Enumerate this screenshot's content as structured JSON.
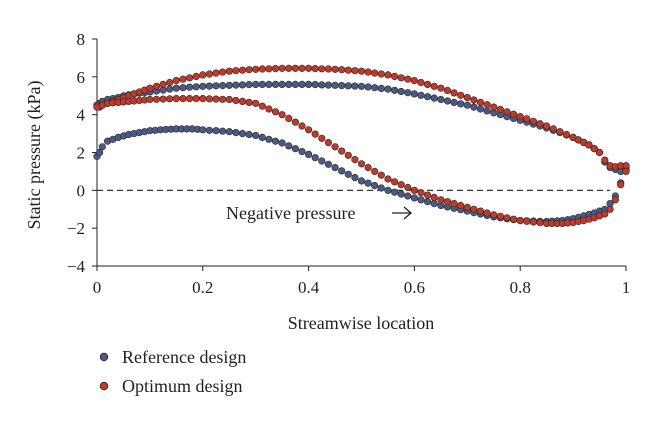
{
  "chart_data": {
    "type": "scatter",
    "title": "",
    "xlabel": "Streamwise location",
    "ylabel": "Static pressure (kPa)",
    "xlim": [
      0,
      1
    ],
    "ylim": [
      -4,
      8
    ],
    "xticks": [
      0,
      0.2,
      0.4,
      0.6,
      0.8,
      1
    ],
    "yticks": [
      -4,
      -2,
      0,
      2,
      4,
      6,
      8
    ],
    "grid": false,
    "legend_position": "bottom-left",
    "reference_line": {
      "y": 0,
      "style": "dashed"
    },
    "annotation": {
      "text": "Negative pressure",
      "arrow_to": [
        0.6,
        0.0
      ]
    },
    "series": [
      {
        "name": "Reference design",
        "color": "#4a5a82",
        "upper_x": [
          0,
          0.005,
          0.01,
          0.02,
          0.03,
          0.04,
          0.05,
          0.07,
          0.1,
          0.15,
          0.2,
          0.25,
          0.3,
          0.35,
          0.4,
          0.45,
          0.5,
          0.55,
          0.6,
          0.65,
          0.7,
          0.75,
          0.8,
          0.85,
          0.9,
          0.93,
          0.95,
          0.96,
          0.97,
          0.98,
          0.99,
          1.0
        ],
        "upper_y": [
          4.5,
          4.6,
          4.7,
          4.8,
          4.85,
          4.9,
          5.0,
          5.1,
          5.2,
          5.4,
          5.5,
          5.55,
          5.6,
          5.6,
          5.6,
          5.55,
          5.5,
          5.35,
          5.1,
          4.8,
          4.5,
          4.1,
          3.7,
          3.3,
          2.8,
          2.4,
          2.0,
          1.5,
          1.2,
          1.1,
          1.0,
          1.2
        ],
        "lower_x": [
          0,
          0.005,
          0.01,
          0.02,
          0.04,
          0.06,
          0.08,
          0.1,
          0.12,
          0.15,
          0.18,
          0.2,
          0.25,
          0.3,
          0.35,
          0.4,
          0.45,
          0.5,
          0.55,
          0.6,
          0.65,
          0.7,
          0.75,
          0.8,
          0.85,
          0.88,
          0.9,
          0.92,
          0.94,
          0.96,
          0.97,
          0.98,
          0.99,
          1.0
        ],
        "lower_y": [
          1.8,
          2.0,
          2.3,
          2.6,
          2.8,
          2.95,
          3.05,
          3.15,
          3.2,
          3.25,
          3.25,
          3.2,
          3.1,
          2.9,
          2.5,
          1.9,
          1.2,
          0.5,
          0.0,
          -0.4,
          -0.8,
          -1.1,
          -1.4,
          -1.6,
          -1.65,
          -1.6,
          -1.5,
          -1.35,
          -1.2,
          -1.0,
          -0.7,
          -0.3,
          0.4,
          1.1
        ]
      },
      {
        "name": "Optimum design",
        "color": "#c0392b",
        "upper_x": [
          0,
          0.005,
          0.01,
          0.02,
          0.03,
          0.05,
          0.07,
          0.1,
          0.15,
          0.2,
          0.25,
          0.3,
          0.35,
          0.4,
          0.45,
          0.5,
          0.55,
          0.6,
          0.65,
          0.7,
          0.75,
          0.8,
          0.85,
          0.9,
          0.93,
          0.95,
          0.96,
          0.97,
          0.98,
          0.99,
          1.0
        ],
        "upper_y": [
          4.5,
          4.4,
          4.5,
          4.6,
          4.7,
          4.9,
          5.1,
          5.4,
          5.8,
          6.1,
          6.3,
          6.4,
          6.45,
          6.45,
          6.4,
          6.3,
          6.1,
          5.8,
          5.4,
          4.9,
          4.4,
          3.9,
          3.4,
          2.8,
          2.4,
          2.0,
          1.6,
          1.3,
          1.25,
          1.3,
          1.3
        ],
        "lower_x": [
          0,
          0.01,
          0.02,
          0.04,
          0.06,
          0.08,
          0.1,
          0.15,
          0.2,
          0.25,
          0.3,
          0.35,
          0.4,
          0.45,
          0.5,
          0.55,
          0.6,
          0.65,
          0.7,
          0.75,
          0.8,
          0.85,
          0.88,
          0.9,
          0.92,
          0.94,
          0.96,
          0.97,
          0.98,
          0.99,
          1.0
        ],
        "lower_y": [
          4.4,
          4.5,
          4.6,
          4.65,
          4.7,
          4.75,
          4.8,
          4.85,
          4.85,
          4.8,
          4.6,
          4.0,
          3.2,
          2.3,
          1.4,
          0.6,
          0.0,
          -0.5,
          -0.9,
          -1.3,
          -1.6,
          -1.75,
          -1.75,
          -1.7,
          -1.6,
          -1.45,
          -1.25,
          -1.0,
          -0.5,
          0.3,
          1.0
        ]
      }
    ]
  }
}
